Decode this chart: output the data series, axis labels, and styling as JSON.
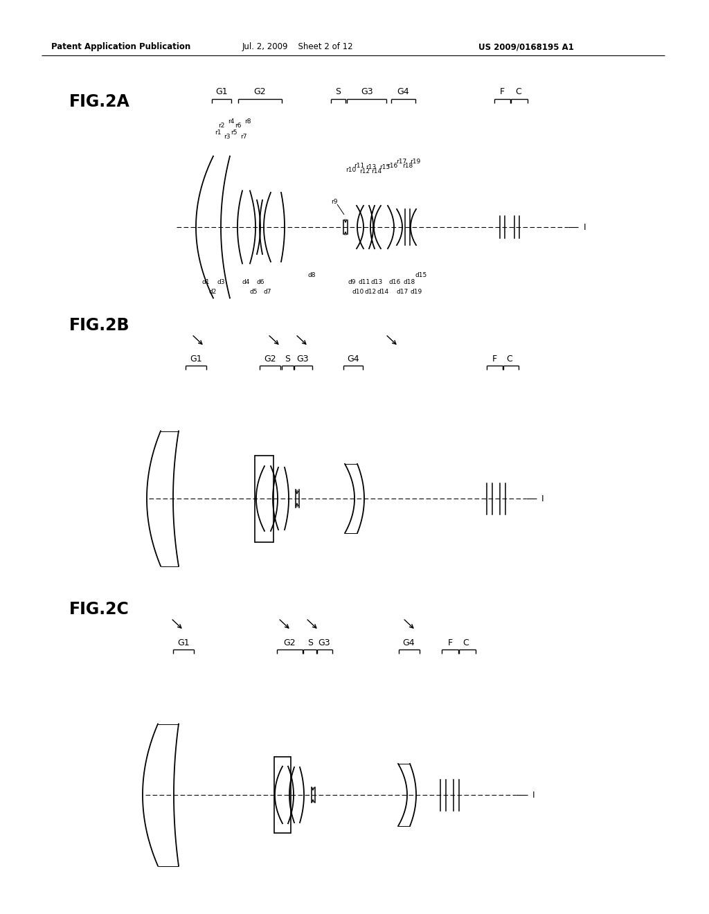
{
  "header_left": "Patent Application Publication",
  "header_center": "Jul. 2, 2009    Sheet 2 of 12",
  "header_right": "US 2009/0168195 A1",
  "fig2a_label": "FIG.2A",
  "fig2b_label": "FIG.2B",
  "fig2c_label": "FIG.2C",
  "bg_color": "#ffffff",
  "line_color": "#000000"
}
